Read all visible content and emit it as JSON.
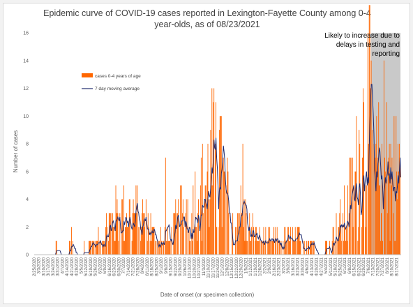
{
  "chart_data": {
    "type": "bar",
    "title_line1": "Epidemic curve of COVID-19 cases reported in Lexington-Fayette County among 0-4",
    "title_line2": "year-olds, as of 08/23/2021",
    "xlabel": "Date of onset (or specimen collection)",
    "ylabel": "Number of cases",
    "ylim": [
      0,
      16
    ],
    "yticks": [
      "0",
      "2",
      "4",
      "6",
      "8",
      "10",
      "12",
      "14",
      "16"
    ],
    "start_date": "2020-02-25",
    "end_date": "2021-08-23",
    "x_tick_labels": [
      "2/25/2020",
      "3/3/2020",
      "3/10/2020",
      "3/17/2020",
      "3/24/2020",
      "3/31/2020",
      "4/7/2020",
      "4/14/2020",
      "4/21/2020",
      "4/28/2020",
      "5/5/2020",
      "5/12/2020",
      "5/19/2020",
      "5/26/2020",
      "6/2/2020",
      "6/9/2020",
      "6/16/2020",
      "6/23/2020",
      "6/30/2020",
      "7/7/2020",
      "7/14/2020",
      "7/21/2020",
      "7/28/2020",
      "8/4/2020",
      "8/11/2020",
      "8/18/2020",
      "8/25/2020",
      "9/1/2020",
      "9/8/2020",
      "9/15/2020",
      "9/22/2020",
      "9/29/2020",
      "10/6/2020",
      "10/13/2020",
      "10/20/2020",
      "10/27/2020",
      "11/3/2020",
      "11/10/2020",
      "11/17/2020",
      "11/24/2020",
      "12/1/2020",
      "12/8/2020",
      "12/15/2020",
      "12/22/2020",
      "12/29/2020",
      "1/5/2021",
      "1/12/2021",
      "1/19/2021",
      "1/26/2021",
      "2/2/2021",
      "2/9/2021",
      "2/16/2021",
      "2/23/2021",
      "3/2/2021",
      "3/9/2021",
      "3/16/2021",
      "3/23/2021",
      "3/30/2021",
      "4/6/2021",
      "4/13/2021",
      "4/20/2021",
      "4/27/2021",
      "5/4/2021",
      "5/11/2021",
      "5/18/2021",
      "5/25/2021",
      "6/1/2021",
      "6/8/2021",
      "6/15/2021",
      "6/22/2021",
      "6/29/2021",
      "7/6/2021",
      "7/13/2021",
      "7/20/2021",
      "7/27/2021",
      "8/3/2021",
      "8/10/2021",
      "8/17/2021"
    ],
    "series": [
      {
        "name": "cases 0-4 years of age",
        "color": "#ff6600",
        "anchors": [
          [
            0,
            0
          ],
          [
            30,
            0
          ],
          [
            33,
            1
          ],
          [
            36,
            0
          ],
          [
            50,
            0
          ],
          [
            55,
            1
          ],
          [
            60,
            0
          ],
          [
            95,
            1
          ],
          [
            110,
            2
          ],
          [
            130,
            3
          ],
          [
            150,
            3
          ],
          [
            170,
            2
          ],
          [
            185,
            1
          ],
          [
            200,
            1
          ],
          [
            210,
            2
          ],
          [
            225,
            3
          ],
          [
            240,
            4
          ],
          [
            255,
            5
          ],
          [
            268,
            7
          ],
          [
            275,
            6
          ],
          [
            285,
            4
          ],
          [
            295,
            3
          ],
          [
            305,
            3
          ],
          [
            320,
            2
          ],
          [
            335,
            1
          ],
          [
            350,
            1
          ],
          [
            365,
            1
          ],
          [
            380,
            1
          ],
          [
            395,
            1
          ],
          [
            410,
            1
          ],
          [
            425,
            0
          ],
          [
            440,
            1
          ],
          [
            455,
            2
          ],
          [
            465,
            3
          ],
          [
            475,
            5
          ],
          [
            485,
            7
          ],
          [
            493,
            9
          ],
          [
            500,
            10
          ],
          [
            508,
            6
          ]
        ]
      },
      {
        "name": "7 day moving average",
        "color": "#1f2a6e"
      }
    ],
    "shaded_region": {
      "label": "Likely to increase due to delays in testing and reporting",
      "from_day": 501,
      "to_day": 545
    },
    "legend_position": "upper-left",
    "grid": false
  },
  "annotation": {
    "line1": "Likely to increase due to",
    "line2": "delays in testing and",
    "line3": "reporting"
  }
}
